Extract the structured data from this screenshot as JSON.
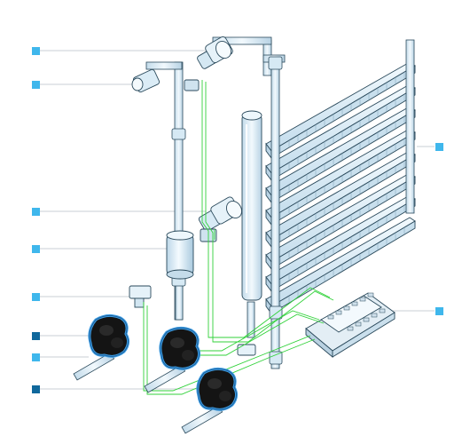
{
  "colors": {
    "background": "#ffffff",
    "pipe_fill": "#ddeef7",
    "pipe_outline": "#2b4a5c",
    "pipe_highlight": "#f2f9fd",
    "leader_line": "#c9cfd4",
    "callout_light": "#3fb7ec",
    "callout_dark": "#10689c",
    "wire_green": "#31d23a",
    "actuator_body": "#141414",
    "actuator_glow": "#3e9fe6",
    "controller_fill": "#e3eef5"
  },
  "callouts": [
    {
      "id": "upper-valve-callout",
      "tone": "light"
    },
    {
      "id": "small-valve-callout",
      "tone": "light"
    },
    {
      "id": "lower-valve-callout",
      "tone": "light"
    },
    {
      "id": "tank-callout",
      "tone": "light"
    },
    {
      "id": "sensor-callout",
      "tone": "light"
    },
    {
      "id": "actuator-callout-1",
      "tone": "dark"
    },
    {
      "id": "actuator-pipe-callout",
      "tone": "light"
    },
    {
      "id": "actuator-callout-2",
      "tone": "dark"
    },
    {
      "id": "radiator-callout",
      "tone": "light"
    },
    {
      "id": "controller-callout",
      "tone": "light"
    }
  ],
  "actuators": [
    {
      "id": "actuator-1",
      "icon": "thermal-actuator-icon"
    },
    {
      "id": "actuator-2",
      "icon": "thermal-actuator-icon"
    },
    {
      "id": "actuator-3",
      "icon": "thermal-actuator-icon"
    }
  ],
  "radiator": {
    "icon": "radiator-icon",
    "fin_count": 8
  },
  "controller": {
    "icon": "controller-module-icon"
  }
}
